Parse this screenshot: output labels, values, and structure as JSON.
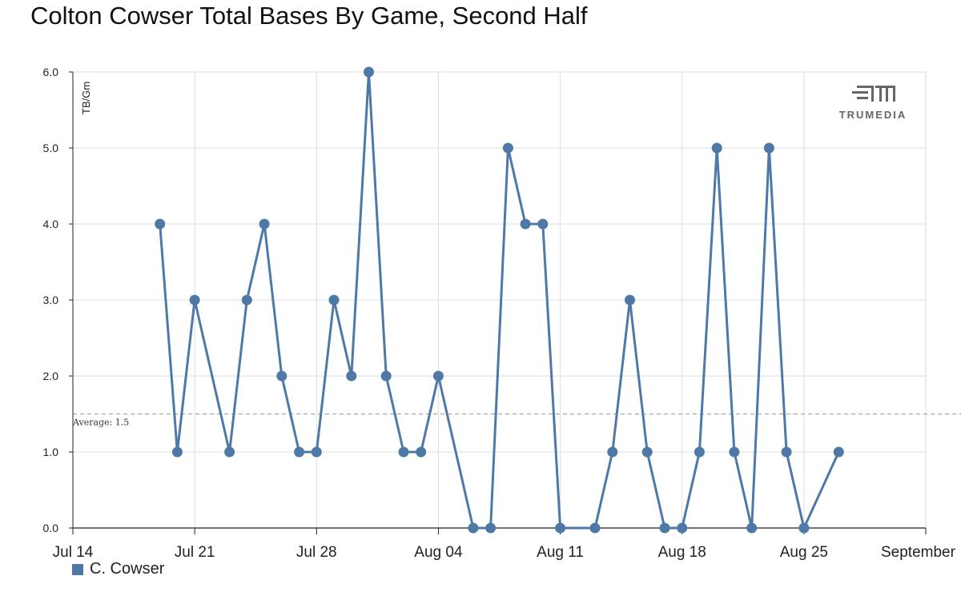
{
  "title": "Colton Cowser Total Bases By Game, Second Half",
  "logo": {
    "icon": "trumedia-logo-icon",
    "text": "TRUMEDIA"
  },
  "legend": {
    "label": "C. Cowser",
    "color": "#4e79a7"
  },
  "chart_data": {
    "type": "line",
    "title": "Colton Cowser Total Bases By Game, Second Half",
    "ylabel": "TB/Gm",
    "xlabel": "",
    "ylim": [
      0,
      6
    ],
    "xlim": [
      "2024-07-14",
      "2024-09-01"
    ],
    "y_ticks": [
      "0.0",
      "1.0",
      "2.0",
      "3.0",
      "4.0",
      "5.0",
      "6.0"
    ],
    "x_ticks": [
      {
        "date": "2024-07-14",
        "label": "Jul 14"
      },
      {
        "date": "2024-07-21",
        "label": "Jul 21"
      },
      {
        "date": "2024-07-28",
        "label": "Jul 28"
      },
      {
        "date": "2024-08-04",
        "label": "Aug 04"
      },
      {
        "date": "2024-08-11",
        "label": "Aug 11"
      },
      {
        "date": "2024-08-18",
        "label": "Aug 18"
      },
      {
        "date": "2024-08-25",
        "label": "Aug 25"
      },
      {
        "date": "2024-09-01",
        "label": "September"
      }
    ],
    "grid": true,
    "legend_position": "bottom-left",
    "series": [
      {
        "name": "C. Cowser",
        "color": "#4e79a7",
        "points": [
          [
            "2024-07-19",
            4
          ],
          [
            "2024-07-20",
            1
          ],
          [
            "2024-07-21",
            3
          ],
          [
            "2024-07-23",
            1
          ],
          [
            "2024-07-24",
            3
          ],
          [
            "2024-07-25",
            4
          ],
          [
            "2024-07-26",
            2
          ],
          [
            "2024-07-27",
            1
          ],
          [
            "2024-07-28",
            1
          ],
          [
            "2024-07-29",
            3
          ],
          [
            "2024-07-30",
            2
          ],
          [
            "2024-07-31",
            6
          ],
          [
            "2024-08-01",
            2
          ],
          [
            "2024-08-02",
            1
          ],
          [
            "2024-08-03",
            1
          ],
          [
            "2024-08-04",
            2
          ],
          [
            "2024-08-06",
            0
          ],
          [
            "2024-08-07",
            0
          ],
          [
            "2024-08-08",
            5
          ],
          [
            "2024-08-09",
            4
          ],
          [
            "2024-08-10",
            4
          ],
          [
            "2024-08-11",
            0
          ],
          [
            "2024-08-13",
            0
          ],
          [
            "2024-08-14",
            1
          ],
          [
            "2024-08-15",
            3
          ],
          [
            "2024-08-16",
            1
          ],
          [
            "2024-08-17",
            0
          ],
          [
            "2024-08-18",
            0
          ],
          [
            "2024-08-19",
            1
          ],
          [
            "2024-08-20",
            5
          ],
          [
            "2024-08-21",
            1
          ],
          [
            "2024-08-22",
            0
          ],
          [
            "2024-08-23",
            5
          ],
          [
            "2024-08-24",
            1
          ],
          [
            "2024-08-25",
            0
          ],
          [
            "2024-08-27",
            1
          ]
        ]
      }
    ],
    "reference_line": {
      "label": "Average: 1.5",
      "value": 1.5
    }
  }
}
